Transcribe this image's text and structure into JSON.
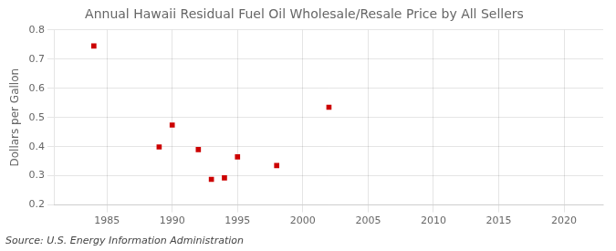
{
  "chart_data": {
    "type": "scatter",
    "title": "Annual Hawaii Residual Fuel Oil Wholesale/Resale Price by All Sellers",
    "y_label": "Dollars per Gallon",
    "annotation": "Source: U.S. Energy Information Administration",
    "x": [
      1984,
      1989,
      1990,
      1992,
      1993,
      1994,
      1995,
      1998,
      2002
    ],
    "values": [
      0.745,
      0.399,
      0.474,
      0.39,
      0.288,
      0.293,
      0.365,
      0.335,
      0.535
    ],
    "color": "#cc0000",
    "marker": "square",
    "xlim": [
      1981,
      2023
    ],
    "ylim": [
      0.2,
      0.8
    ],
    "xticks": [
      1985,
      1990,
      1995,
      2000,
      2005,
      2010,
      2015,
      2020
    ],
    "yticks": [
      0.2,
      0.3,
      0.4,
      0.5,
      0.6,
      0.7,
      0.8
    ],
    "grid": true
  }
}
